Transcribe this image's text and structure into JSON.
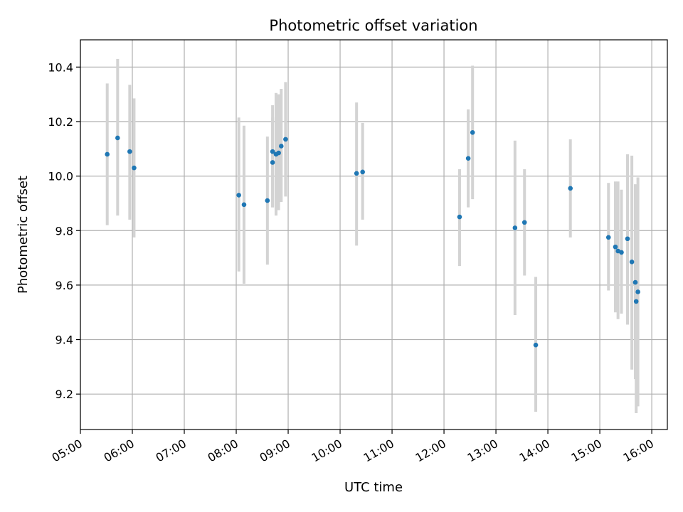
{
  "chart_data": {
    "type": "scatter",
    "title": "Photometric offset variation",
    "xlabel": "UTC time",
    "ylabel": "Photometric offset",
    "xlim": [
      "05:00",
      "16:18"
    ],
    "ylim": [
      9.07,
      10.5
    ],
    "x_ticks": [
      "05:00",
      "06:00",
      "07:00",
      "08:00",
      "09:00",
      "10:00",
      "11:00",
      "12:00",
      "13:00",
      "14:00",
      "15:00",
      "16:00"
    ],
    "y_ticks": [
      "9.2",
      "9.4",
      "9.6",
      "9.8",
      "10.0",
      "10.2",
      "10.4"
    ],
    "grid": true,
    "colors": {
      "point": "#1f77b4",
      "errorbar": "#d3d3d3",
      "grid": "#b0b0b0"
    },
    "points": [
      {
        "time": "05:31",
        "y": 10.08,
        "err_low": 9.82,
        "err_high": 10.34
      },
      {
        "time": "05:43",
        "y": 10.14,
        "err_low": 9.855,
        "err_high": 10.43
      },
      {
        "time": "05:57",
        "y": 10.09,
        "err_low": 9.84,
        "err_high": 10.335
      },
      {
        "time": "06:02",
        "y": 10.03,
        "err_low": 9.775,
        "err_high": 10.285
      },
      {
        "time": "08:03",
        "y": 9.93,
        "err_low": 9.65,
        "err_high": 10.215
      },
      {
        "time": "08:09",
        "y": 9.895,
        "err_low": 9.605,
        "err_high": 10.185
      },
      {
        "time": "08:36",
        "y": 9.91,
        "err_low": 9.675,
        "err_high": 10.145
      },
      {
        "time": "08:42",
        "y": 10.09,
        "err_low": 9.885,
        "err_high": 10.26
      },
      {
        "time": "08:42",
        "y": 10.05,
        "err_low": 9.885,
        "err_high": 10.215
      },
      {
        "time": "08:46",
        "y": 10.08,
        "err_low": 9.855,
        "err_high": 10.305
      },
      {
        "time": "08:49",
        "y": 10.085,
        "err_low": 9.875,
        "err_high": 10.3
      },
      {
        "time": "08:52",
        "y": 10.11,
        "err_low": 9.905,
        "err_high": 10.32
      },
      {
        "time": "08:57",
        "y": 10.135,
        "err_low": 9.925,
        "err_high": 10.345
      },
      {
        "time": "10:19",
        "y": 10.01,
        "err_low": 9.745,
        "err_high": 10.27
      },
      {
        "time": "10:26",
        "y": 10.015,
        "err_low": 9.84,
        "err_high": 10.195
      },
      {
        "time": "12:18",
        "y": 9.85,
        "err_low": 9.67,
        "err_high": 10.025
      },
      {
        "time": "12:28",
        "y": 10.065,
        "err_low": 9.885,
        "err_high": 10.245
      },
      {
        "time": "12:33",
        "y": 10.16,
        "err_low": 9.915,
        "err_high": 10.405
      },
      {
        "time": "13:22",
        "y": 9.81,
        "err_low": 9.49,
        "err_high": 10.13
      },
      {
        "time": "13:33",
        "y": 9.83,
        "err_low": 9.635,
        "err_high": 10.025
      },
      {
        "time": "13:46",
        "y": 9.38,
        "err_low": 9.135,
        "err_high": 9.63
      },
      {
        "time": "14:26",
        "y": 9.955,
        "err_low": 9.775,
        "err_high": 10.135
      },
      {
        "time": "15:10",
        "y": 9.775,
        "err_low": 9.58,
        "err_high": 9.975
      },
      {
        "time": "15:18",
        "y": 9.74,
        "err_low": 9.5,
        "err_high": 9.98
      },
      {
        "time": "15:21",
        "y": 9.725,
        "err_low": 9.475,
        "err_high": 9.98
      },
      {
        "time": "15:25",
        "y": 9.72,
        "err_low": 9.495,
        "err_high": 9.95
      },
      {
        "time": "15:32",
        "y": 9.77,
        "err_low": 9.455,
        "err_high": 10.08
      },
      {
        "time": "15:37",
        "y": 9.685,
        "err_low": 9.29,
        "err_high": 10.075
      },
      {
        "time": "15:41",
        "y": 9.61,
        "err_low": 9.255,
        "err_high": 9.97
      },
      {
        "time": "15:42",
        "y": 9.54,
        "err_low": 9.13,
        "err_high": 9.94
      },
      {
        "time": "15:44",
        "y": 9.575,
        "err_low": 9.155,
        "err_high": 9.995
      }
    ]
  }
}
